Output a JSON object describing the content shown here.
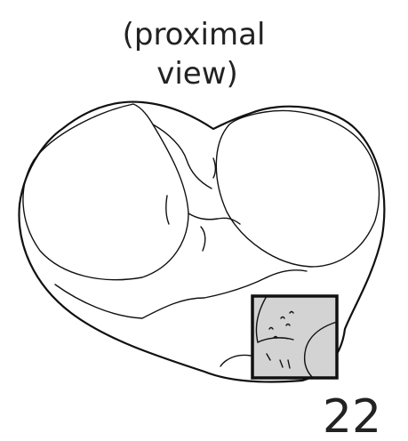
{
  "caption": {
    "line1": "(proximal",
    "line2": "view)"
  },
  "region": {
    "label": "22",
    "fill_color": "#d3d3d3",
    "stroke_color": "#111111"
  }
}
